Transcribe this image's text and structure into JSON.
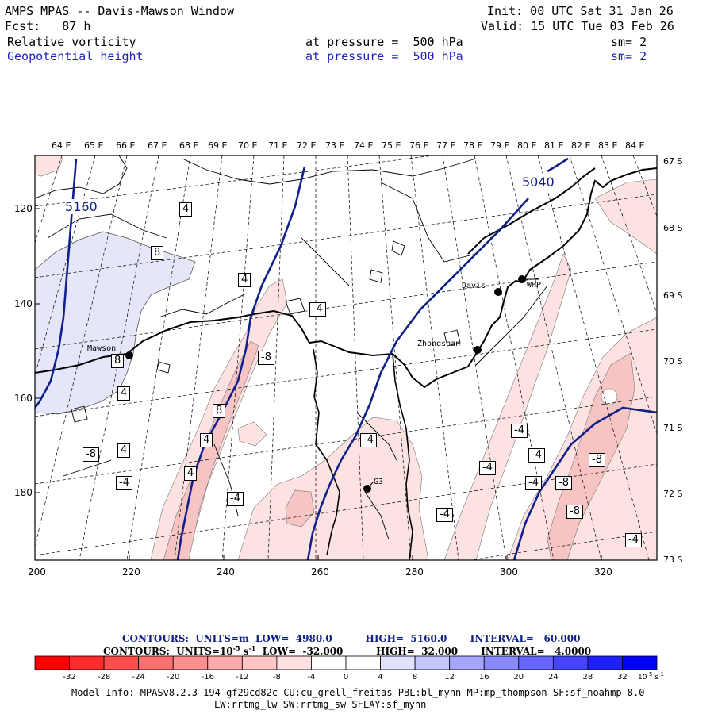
{
  "header": {
    "title": "AMPS MPAS -- Davis-Mawson Window",
    "init": "Init: 00 UTC Sat 31 Jan 26",
    "fcst": "Fcst:   87 h",
    "valid": "Valid: 15 UTC Tue 03 Feb 26"
  },
  "fields": [
    {
      "name": "Relative vorticity",
      "level": "at pressure =  500 hPa",
      "sm": "sm= 2"
    },
    {
      "name": "Geopotential height",
      "level": "at pressure =  500 hPa",
      "sm": "sm= 2"
    }
  ],
  "map": {
    "top_labels": [
      "64 E",
      "65 E",
      "66 E",
      "67 E",
      "68 E",
      "69 E",
      "70 E",
      "71 E",
      "72 E",
      "73 E",
      "74 E",
      "75 E",
      "76 E",
      "77 E",
      "78 E",
      "79 E",
      "80 E",
      "81 E",
      "82 E",
      "83 E",
      "84 E"
    ],
    "right_labels": [
      "67 S",
      "68 S",
      "69 S",
      "70 S",
      "71 S",
      "72 S",
      "73 S"
    ],
    "left_ticks": [
      "120",
      "140",
      "160",
      "180"
    ],
    "bottom_ticks": [
      "200",
      "220",
      "240",
      "260",
      "280",
      "300",
      "320"
    ],
    "stations": [
      {
        "name": "Mawson"
      },
      {
        "name": "Davis"
      },
      {
        "name": "WHP"
      },
      {
        "name": "Zhongshan"
      },
      {
        "name": "G3"
      }
    ],
    "height_labels": [
      "5160",
      "5040"
    ],
    "vorticity_labels": [
      "4",
      "8",
      "4",
      "-4",
      "-8",
      "8",
      "4",
      "8",
      "4",
      "4",
      "-8",
      "-4",
      "-4",
      "4",
      "-4",
      "-4",
      "-4",
      "-4",
      "-4",
      "-4",
      "-8",
      "-8",
      "-8",
      "-4"
    ],
    "colors": {
      "height": "#10208a",
      "pos_fill": "#e6e6fa",
      "neg_fill_light": "#fde2e2",
      "neg_fill_mid": "#f7c4c4"
    }
  },
  "contour_info": {
    "height": "CONTOURS:  UNITS=m  LOW=  4980.0          HIGH=  5160.0       INTERVAL=   60.000",
    "vort_prefix": "CONTOURS:  UNITS=10",
    "vort_exp": "-5",
    "vort_unit": " s",
    "vort_unit_exp": "-1",
    "vort_rest": "  LOW=  -32.000          HIGH=  32.000       INTERVAL=   4.0000"
  },
  "colorbar": {
    "labels": [
      "-32",
      "-28",
      "-24",
      "-20",
      "-16",
      "-12",
      "-8",
      "-4",
      "0",
      "4",
      "8",
      "12",
      "16",
      "20",
      "24",
      "28",
      "32"
    ],
    "colors": [
      "#ff0000",
      "#ff2a2a",
      "#ff4d4d",
      "#ff6f6f",
      "#ff8f8f",
      "#ffaaaa",
      "#ffc4c4",
      "#ffe0e0",
      "#ffffff",
      "#ffffff",
      "#e0e0ff",
      "#c4c4ff",
      "#a6a6ff",
      "#8888ff",
      "#6666ff",
      "#4444ff",
      "#2020ff",
      "#0000ff"
    ],
    "unit": "10",
    "unit_exp": "-5",
    "unit_s": " s",
    "unit_s_exp": "-1"
  },
  "model_info": {
    "line1": "Model Info: MPASv8.2.3-194-gf29cd82c CU:cu_grell_freitas PBL:bl_mynn MP:mp_thompson SF:sf_noahmp 8.0",
    "line2": "LW:rrtmg_lw SW:rrtmg_sw SFLAY:sf_mynn"
  }
}
